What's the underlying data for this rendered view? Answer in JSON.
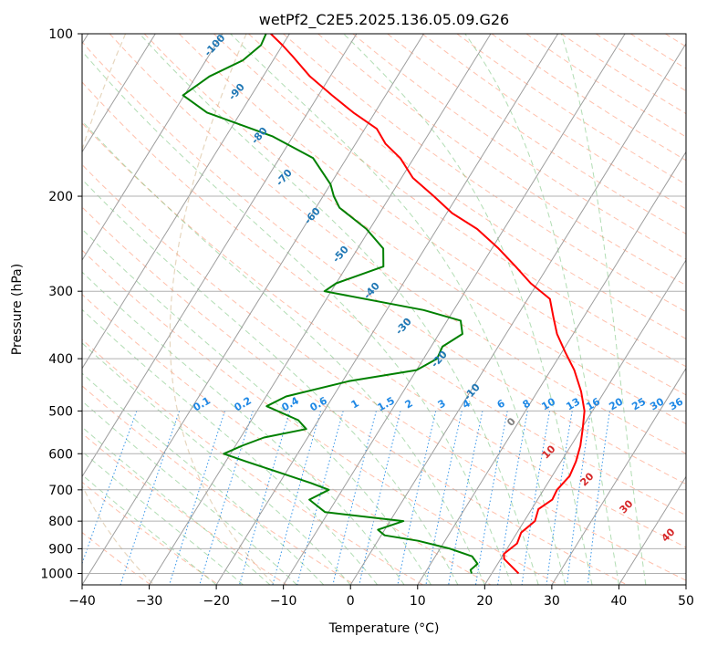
{
  "chart_data": {
    "type": "line",
    "title": "wetPf2_C2E5.2025.136.05.09.G26",
    "xlabel": "Temperature (°C)",
    "ylabel": "Pressure (hPa)",
    "xlim": [
      -40,
      50
    ],
    "ylim": [
      1050,
      100
    ],
    "y_scale": "log",
    "x_ticks": [
      -40,
      -30,
      -20,
      -10,
      0,
      10,
      20,
      30,
      40,
      50
    ],
    "y_ticks": [
      100,
      200,
      300,
      400,
      500,
      600,
      700,
      800,
      900,
      1000
    ],
    "grid": true,
    "skew": true,
    "series": [
      {
        "color": "#ff0000",
        "points": [
          [
            24.0,
            1000
          ],
          [
            20.5,
            940
          ],
          [
            20.0,
            920
          ],
          [
            21.0,
            880
          ],
          [
            20.6,
            840
          ],
          [
            21.6,
            800
          ],
          [
            21.0,
            760
          ],
          [
            22.2,
            730
          ],
          [
            22.0,
            700
          ],
          [
            22.6,
            660
          ],
          [
            22.2,
            620
          ],
          [
            21.4,
            580
          ],
          [
            20.2,
            540
          ],
          [
            18.8,
            500
          ],
          [
            16.5,
            460
          ],
          [
            13.5,
            420
          ],
          [
            10.6,
            390
          ],
          [
            7.6,
            360
          ],
          [
            5.5,
            335
          ],
          [
            3.3,
            310
          ],
          [
            -1.0,
            290
          ],
          [
            -4.8,
            270
          ],
          [
            -9.0,
            250
          ],
          [
            -14.0,
            230
          ],
          [
            -19.2,
            215
          ],
          [
            -23.5,
            200
          ],
          [
            -28.3,
            185
          ],
          [
            -32.0,
            170
          ],
          [
            -35.5,
            160
          ],
          [
            -38.2,
            150
          ],
          [
            -43.2,
            140
          ],
          [
            -48.0,
            130
          ],
          [
            -53.0,
            120
          ],
          [
            -57.5,
            110
          ],
          [
            -60.0,
            105
          ],
          [
            -62.8,
            100
          ]
        ]
      },
      {
        "color": "#008000",
        "points": [
          [
            17.0,
            1000
          ],
          [
            16.5,
            985
          ],
          [
            17.0,
            960
          ],
          [
            15.5,
            930
          ],
          [
            11.5,
            900
          ],
          [
            6.0,
            870
          ],
          [
            0.5,
            850
          ],
          [
            -1.0,
            830
          ],
          [
            2.0,
            800
          ],
          [
            -10.5,
            770
          ],
          [
            -14.0,
            730
          ],
          [
            -12.0,
            700
          ],
          [
            -15.3,
            680
          ],
          [
            -21.0,
            650
          ],
          [
            -27.0,
            620
          ],
          [
            -31.0,
            600
          ],
          [
            -29.0,
            580
          ],
          [
            -26.5,
            560
          ],
          [
            -21.0,
            540
          ],
          [
            -23.0,
            520
          ],
          [
            -29.0,
            490
          ],
          [
            -27.0,
            470
          ],
          [
            -19.0,
            440
          ],
          [
            -10.0,
            420
          ],
          [
            -8.0,
            400
          ],
          [
            -8.3,
            380
          ],
          [
            -6.5,
            360
          ],
          [
            -8.0,
            340
          ],
          [
            -14.5,
            325
          ],
          [
            -31.0,
            300
          ],
          [
            -30.0,
            290
          ],
          [
            -24.5,
            270
          ],
          [
            -26.2,
            250
          ],
          [
            -30.5,
            230
          ],
          [
            -36.5,
            210
          ],
          [
            -38.4,
            200
          ],
          [
            -40.0,
            190
          ],
          [
            -45.0,
            170
          ],
          [
            -53.0,
            155
          ],
          [
            -65.0,
            140
          ],
          [
            -70.2,
            130
          ],
          [
            -68.0,
            120
          ],
          [
            -64.5,
            112
          ],
          [
            -63.2,
            105
          ],
          [
            -63.5,
            100
          ]
        ]
      }
    ],
    "annotations": {
      "dry_adiabat_labels": [
        "-100",
        "-90",
        "-80",
        "-70",
        "-60",
        "-50",
        "-40",
        "-30",
        "-20",
        "-10"
      ],
      "mixing_ratio_labels": [
        "0.1",
        "0.2",
        "0.4",
        "0.6",
        "1",
        "1.5",
        "2",
        "3",
        "4",
        "6",
        "8",
        "10",
        "13",
        "16",
        "20",
        "25",
        "30",
        "36"
      ],
      "moist_adiabat_labels": [
        "0",
        "10",
        "20",
        "30",
        "40"
      ]
    },
    "colors": {
      "temperature": "#ff0000",
      "dewpoint": "#008000",
      "dry_adiabat_label": "#1f77b4",
      "mixing_ratio": "#1e88e5",
      "moist_adiabat_label": "#d62728",
      "zero_label": "#808080"
    }
  }
}
